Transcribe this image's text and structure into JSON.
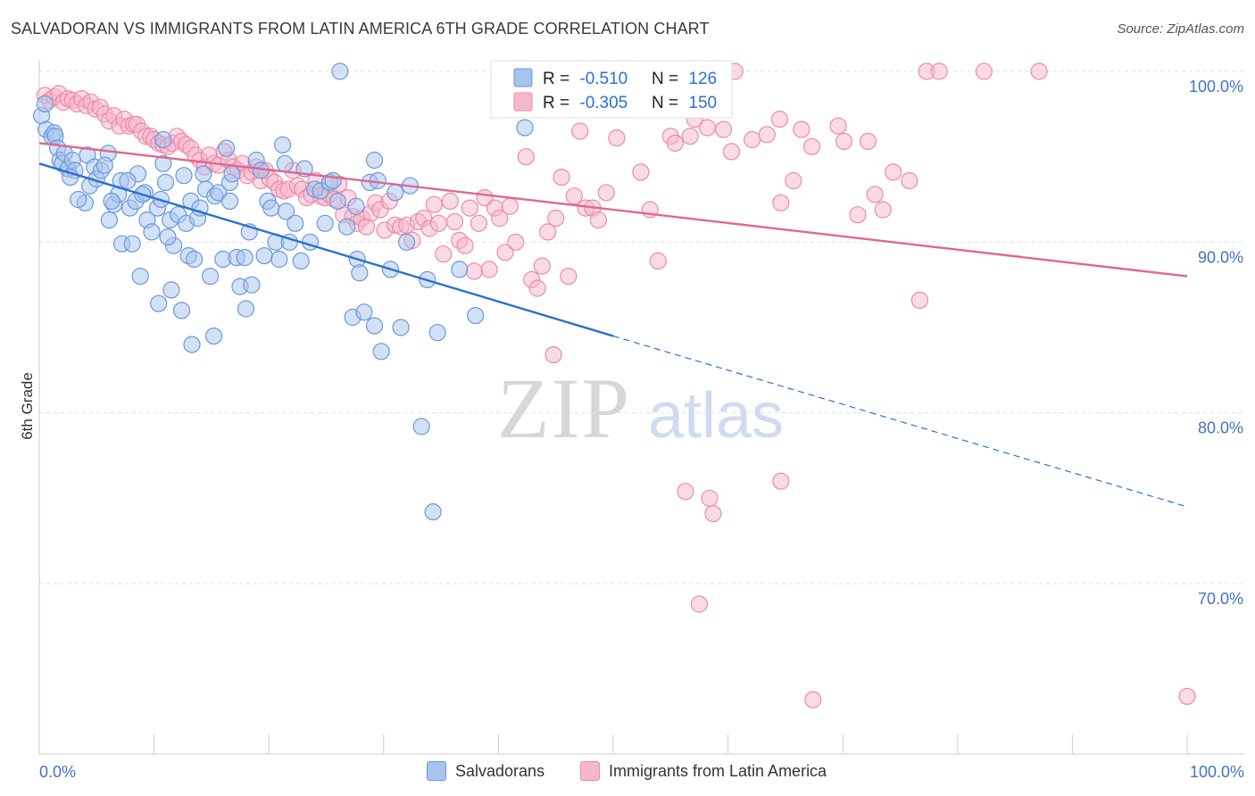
{
  "title": "SALVADORAN VS IMMIGRANTS FROM LATIN AMERICA 6TH GRADE CORRELATION CHART",
  "source": "Source: ZipAtlas.com",
  "watermark": {
    "zip": "ZIP",
    "atlas": "atlas"
  },
  "colors": {
    "blue_fill": "#a7c4ee",
    "blue_stroke": "#6a98dc",
    "blue_line": "#2b72d0",
    "pink_fill": "#f6b7cb",
    "pink_stroke": "#ee89a9",
    "pink_line": "#e06791",
    "axis_label": "#4472c4",
    "grid": "#dde2ea"
  },
  "legend_top": {
    "rows": [
      {
        "r_label": "R = ",
        "r_value": "-0.510",
        "n_label": "N = ",
        "n_value": "126"
      },
      {
        "r_label": "R = ",
        "r_value": "-0.305",
        "n_label": "N = ",
        "n_value": "150"
      }
    ]
  },
  "legend_bottom": [
    "Salvadorans",
    "Immigrants from Latin America"
  ],
  "chart_data": {
    "type": "scatter",
    "xlabel": "",
    "ylabel": "6th Grade",
    "xlim": [
      0,
      100
    ],
    "ylim": [
      62,
      102
    ],
    "x_tick_labels": [
      "0.0%",
      "100.0%"
    ],
    "y_ticks": [
      70,
      80,
      90,
      100
    ],
    "y_tick_labels": [
      "70.0%",
      "80.0%",
      "90.0%",
      "100.0%"
    ],
    "grid": true,
    "series": [
      {
        "name": "Salvadorans",
        "trend": {
          "x0": 0,
          "y0": 94.6,
          "x1": 50,
          "y1": 84.5,
          "dash_to_x": 100,
          "dash_to_y": 74.5
        },
        "points": [
          [
            0.2,
            97.4
          ],
          [
            0.5,
            98.1
          ],
          [
            0.6,
            96.6
          ],
          [
            1.1,
            96.2
          ],
          [
            1.3,
            96.4
          ],
          [
            1.4,
            96.2
          ],
          [
            1.6,
            95.5
          ],
          [
            1.8,
            94.8
          ],
          [
            2.0,
            94.6
          ],
          [
            2.2,
            95.2
          ],
          [
            2.5,
            94.3
          ],
          [
            2.9,
            94.8
          ],
          [
            3.1,
            94.2
          ],
          [
            4.0,
            92.3
          ],
          [
            4.2,
            95.1
          ],
          [
            4.4,
            93.3
          ],
          [
            4.8,
            94.4
          ],
          [
            5.0,
            93.7
          ],
          [
            5.4,
            94.2
          ],
          [
            6.0,
            95.2
          ],
          [
            6.1,
            91.3
          ],
          [
            6.5,
            92.2
          ],
          [
            6.9,
            92.8
          ],
          [
            7.1,
            93.6
          ],
          [
            7.2,
            89.9
          ],
          [
            7.9,
            92.0
          ],
          [
            8.1,
            89.9
          ],
          [
            8.4,
            92.4
          ],
          [
            8.6,
            94.0
          ],
          [
            8.8,
            88.0
          ],
          [
            9.2,
            92.9
          ],
          [
            9.4,
            91.3
          ],
          [
            9.8,
            90.6
          ],
          [
            10.3,
            92.0
          ],
          [
            10.4,
            86.4
          ],
          [
            10.6,
            92.5
          ],
          [
            10.8,
            94.6
          ],
          [
            11.0,
            93.5
          ],
          [
            11.4,
            91.3
          ],
          [
            11.5,
            87.2
          ],
          [
            11.7,
            89.8
          ],
          [
            12.1,
            91.6
          ],
          [
            12.4,
            86.0
          ],
          [
            12.6,
            93.9
          ],
          [
            12.8,
            91.1
          ],
          [
            13.0,
            89.2
          ],
          [
            13.2,
            92.4
          ],
          [
            13.5,
            89.0
          ],
          [
            13.8,
            91.4
          ],
          [
            14.0,
            92.0
          ],
          [
            14.3,
            94.0
          ],
          [
            14.5,
            93.1
          ],
          [
            14.9,
            88.0
          ],
          [
            15.3,
            92.7
          ],
          [
            15.6,
            92.9
          ],
          [
            16.0,
            89.0
          ],
          [
            16.3,
            95.5
          ],
          [
            16.6,
            93.5
          ],
          [
            16.8,
            94.0
          ],
          [
            17.2,
            89.1
          ],
          [
            17.5,
            87.4
          ],
          [
            17.9,
            89.1
          ],
          [
            18.3,
            90.6
          ],
          [
            18.5,
            87.5
          ],
          [
            18.9,
            94.8
          ],
          [
            19.3,
            94.2
          ],
          [
            19.6,
            89.2
          ],
          [
            19.9,
            92.4
          ],
          [
            20.2,
            92.0
          ],
          [
            20.6,
            90.0
          ],
          [
            20.9,
            89.0
          ],
          [
            21.2,
            95.7
          ],
          [
            21.5,
            91.8
          ],
          [
            21.8,
            90.0
          ],
          [
            22.3,
            91.1
          ],
          [
            22.8,
            88.9
          ],
          [
            23.1,
            94.3
          ],
          [
            23.6,
            90.0
          ],
          [
            24.0,
            93.1
          ],
          [
            24.5,
            93.0
          ],
          [
            24.9,
            91.1
          ],
          [
            25.3,
            93.5
          ],
          [
            25.6,
            93.6
          ],
          [
            26.0,
            92.4
          ],
          [
            26.2,
            100.0
          ],
          [
            26.8,
            90.9
          ],
          [
            27.3,
            85.6
          ],
          [
            27.7,
            89.0
          ],
          [
            27.9,
            88.2
          ],
          [
            28.3,
            85.9
          ],
          [
            28.8,
            93.5
          ],
          [
            29.2,
            85.1
          ],
          [
            29.5,
            93.6
          ],
          [
            29.8,
            83.6
          ],
          [
            30.6,
            88.4
          ],
          [
            31.0,
            92.9
          ],
          [
            31.5,
            85.0
          ],
          [
            32.0,
            90.0
          ],
          [
            32.3,
            93.3
          ],
          [
            33.8,
            87.8
          ],
          [
            34.3,
            74.2
          ],
          [
            34.7,
            84.7
          ],
          [
            36.6,
            88.4
          ],
          [
            38.0,
            85.7
          ],
          [
            42.3,
            96.7
          ],
          [
            33.3,
            79.2
          ],
          [
            15.2,
            84.5
          ],
          [
            13.3,
            84.0
          ],
          [
            18.0,
            86.1
          ],
          [
            6.3,
            92.4
          ],
          [
            2.7,
            93.8
          ],
          [
            3.4,
            92.5
          ],
          [
            7.7,
            93.6
          ],
          [
            5.7,
            94.5
          ],
          [
            9.0,
            92.8
          ],
          [
            11.2,
            90.3
          ],
          [
            16.6,
            92.4
          ],
          [
            21.4,
            94.6
          ],
          [
            27.6,
            92.1
          ],
          [
            29.2,
            94.8
          ],
          [
            10.8,
            96.0
          ]
        ]
      },
      {
        "name": "Immigrants from Latin America",
        "trend": {
          "x0": 0,
          "y0": 95.8,
          "x1": 100,
          "y1": 88.0
        },
        "points": [
          [
            0.5,
            98.6
          ],
          [
            0.9,
            98.3
          ],
          [
            1.3,
            98.5
          ],
          [
            1.7,
            98.7
          ],
          [
            2.1,
            98.2
          ],
          [
            2.5,
            98.4
          ],
          [
            2.9,
            98.3
          ],
          [
            3.3,
            98.1
          ],
          [
            3.7,
            98.4
          ],
          [
            4.1,
            98.0
          ],
          [
            4.5,
            98.2
          ],
          [
            4.9,
            97.8
          ],
          [
            5.3,
            97.9
          ],
          [
            5.7,
            97.5
          ],
          [
            6.1,
            97.1
          ],
          [
            6.5,
            97.4
          ],
          [
            7.0,
            96.8
          ],
          [
            7.4,
            97.2
          ],
          [
            7.8,
            96.8
          ],
          [
            8.2,
            96.9
          ],
          [
            8.5,
            96.9
          ],
          [
            8.9,
            96.5
          ],
          [
            9.3,
            96.2
          ],
          [
            9.7,
            96.2
          ],
          [
            10.0,
            96.0
          ],
          [
            10.4,
            95.8
          ],
          [
            10.8,
            95.7
          ],
          [
            11.2,
            95.6
          ],
          [
            11.6,
            95.8
          ],
          [
            12.0,
            96.2
          ],
          [
            12.4,
            95.9
          ],
          [
            12.8,
            95.7
          ],
          [
            13.2,
            95.5
          ],
          [
            13.6,
            95.1
          ],
          [
            14.0,
            94.8
          ],
          [
            14.4,
            94.4
          ],
          [
            14.8,
            95.1
          ],
          [
            15.2,
            94.6
          ],
          [
            15.6,
            94.5
          ],
          [
            16.1,
            95.3
          ],
          [
            16.5,
            94.8
          ],
          [
            16.9,
            94.4
          ],
          [
            17.3,
            94.2
          ],
          [
            17.7,
            94.6
          ],
          [
            18.1,
            93.9
          ],
          [
            18.5,
            94.1
          ],
          [
            18.9,
            94.4
          ],
          [
            19.3,
            93.6
          ],
          [
            19.7,
            94.2
          ],
          [
            20.1,
            93.7
          ],
          [
            20.5,
            93.5
          ],
          [
            20.9,
            93.1
          ],
          [
            21.3,
            93.0
          ],
          [
            21.7,
            93.1
          ],
          [
            22.1,
            94.2
          ],
          [
            22.5,
            93.3
          ],
          [
            22.9,
            93.1
          ],
          [
            23.3,
            92.6
          ],
          [
            23.7,
            92.8
          ],
          [
            24.1,
            93.6
          ],
          [
            24.5,
            92.7
          ],
          [
            24.9,
            92.6
          ],
          [
            25.3,
            92.8
          ],
          [
            25.7,
            92.5
          ],
          [
            26.1,
            93.4
          ],
          [
            26.5,
            91.6
          ],
          [
            26.9,
            92.6
          ],
          [
            27.3,
            91.5
          ],
          [
            27.7,
            91.1
          ],
          [
            28.1,
            91.4
          ],
          [
            28.5,
            90.9
          ],
          [
            28.9,
            91.7
          ],
          [
            29.3,
            92.3
          ],
          [
            29.7,
            91.9
          ],
          [
            30.1,
            90.7
          ],
          [
            30.5,
            92.4
          ],
          [
            31.0,
            91.0
          ],
          [
            31.5,
            90.9
          ],
          [
            32.0,
            91.0
          ],
          [
            32.5,
            90.1
          ],
          [
            33.0,
            91.2
          ],
          [
            33.5,
            91.4
          ],
          [
            34.0,
            90.8
          ],
          [
            34.4,
            92.2
          ],
          [
            34.8,
            91.1
          ],
          [
            35.2,
            89.3
          ],
          [
            35.8,
            92.4
          ],
          [
            36.2,
            91.2
          ],
          [
            36.6,
            90.1
          ],
          [
            37.1,
            89.8
          ],
          [
            37.5,
            92.0
          ],
          [
            37.9,
            88.3
          ],
          [
            38.3,
            91.1
          ],
          [
            38.8,
            92.6
          ],
          [
            39.2,
            88.4
          ],
          [
            39.7,
            92.0
          ],
          [
            40.1,
            91.4
          ],
          [
            40.6,
            89.4
          ],
          [
            41.0,
            92.1
          ],
          [
            41.5,
            90.0
          ],
          [
            42.4,
            95.0
          ],
          [
            42.9,
            87.8
          ],
          [
            43.4,
            87.3
          ],
          [
            43.8,
            88.6
          ],
          [
            44.3,
            90.6
          ],
          [
            45.0,
            91.4
          ],
          [
            45.5,
            93.8
          ],
          [
            46.1,
            88.0
          ],
          [
            46.6,
            92.7
          ],
          [
            47.1,
            96.5
          ],
          [
            47.6,
            92.0
          ],
          [
            48.2,
            92.0
          ],
          [
            48.7,
            91.3
          ],
          [
            49.4,
            92.9
          ],
          [
            50.3,
            96.1
          ],
          [
            52.4,
            94.1
          ],
          [
            53.2,
            91.9
          ],
          [
            53.9,
            88.9
          ],
          [
            55.0,
            96.2
          ],
          [
            55.4,
            95.8
          ],
          [
            56.7,
            96.2
          ],
          [
            57.1,
            97.2
          ],
          [
            58.2,
            96.7
          ],
          [
            59.6,
            96.6
          ],
          [
            60.3,
            95.3
          ],
          [
            60.6,
            100.0
          ],
          [
            62.1,
            96.0
          ],
          [
            63.4,
            96.3
          ],
          [
            64.5,
            97.2
          ],
          [
            65.7,
            93.6
          ],
          [
            66.4,
            96.6
          ],
          [
            67.3,
            95.6
          ],
          [
            69.6,
            96.8
          ],
          [
            70.1,
            95.9
          ],
          [
            72.2,
            95.9
          ],
          [
            73.5,
            91.9
          ],
          [
            74.4,
            94.1
          ],
          [
            75.8,
            93.6
          ],
          [
            77.3,
            100.0
          ],
          [
            78.4,
            100.0
          ],
          [
            82.3,
            100.0
          ],
          [
            87.1,
            100.0
          ],
          [
            76.7,
            86.6
          ],
          [
            56.3,
            75.4
          ],
          [
            58.4,
            75.0
          ],
          [
            58.7,
            74.1
          ],
          [
            64.6,
            76.0
          ],
          [
            57.5,
            68.8
          ],
          [
            67.4,
            63.2
          ],
          [
            100.0,
            63.4
          ],
          [
            44.8,
            83.4
          ],
          [
            53.6,
            98.1
          ],
          [
            64.6,
            92.3
          ],
          [
            71.3,
            91.6
          ],
          [
            72.8,
            92.8
          ]
        ]
      }
    ]
  }
}
